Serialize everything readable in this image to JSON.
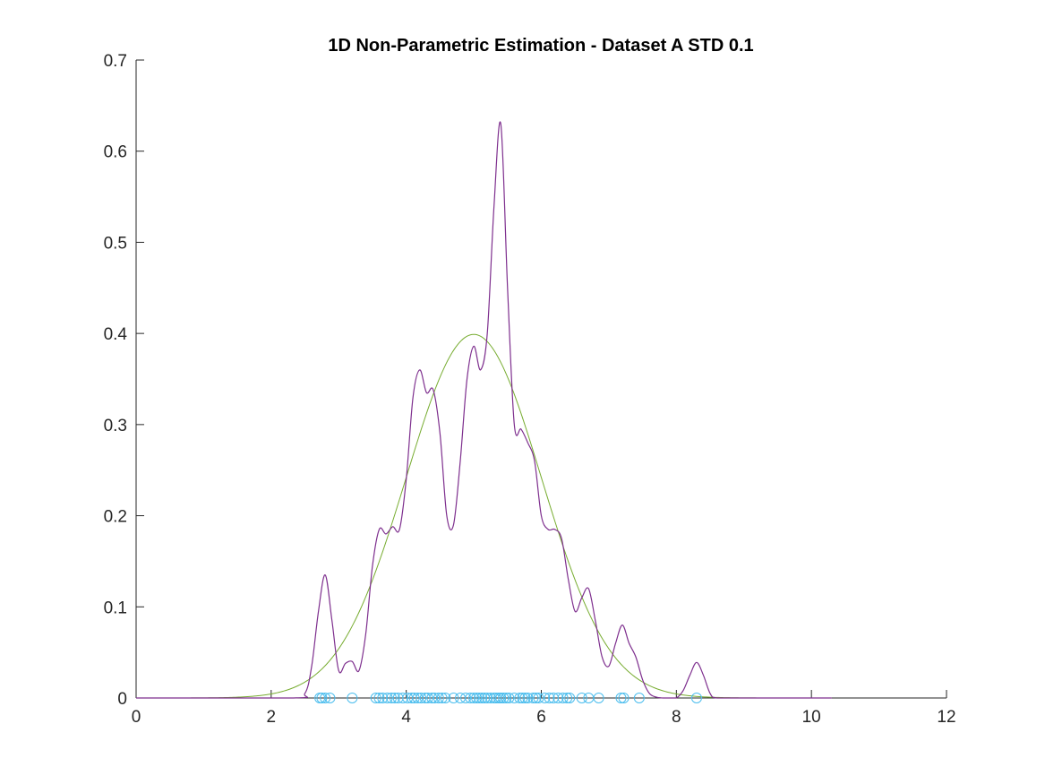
{
  "chart_data": {
    "type": "line",
    "title": "1D Non-Parametric Estimation - Dataset A STD 0.1",
    "xlabel": "",
    "ylabel": "",
    "xlim": [
      0,
      12
    ],
    "ylim": [
      0,
      0.7
    ],
    "xticks": [
      0,
      2,
      4,
      6,
      8,
      10,
      12
    ],
    "yticks": [
      0,
      0.1,
      0.2,
      0.3,
      0.4,
      0.5,
      0.6,
      0.7
    ],
    "xtick_labels": [
      "0",
      "2",
      "4",
      "6",
      "8",
      "10",
      "12"
    ],
    "ytick_labels": [
      "0",
      "0.1",
      "0.2",
      "0.3",
      "0.4",
      "0.5",
      "0.6",
      "0.7"
    ],
    "grid": false,
    "legend": "none",
    "series": [
      {
        "kind": "line",
        "color": "#7e2f8e",
        "x": [
          0,
          2.3,
          2.5,
          2.6,
          2.7,
          2.8,
          2.9,
          3.0,
          3.1,
          3.2,
          3.3,
          3.4,
          3.5,
          3.6,
          3.7,
          3.8,
          3.9,
          4.0,
          4.1,
          4.2,
          4.3,
          4.4,
          4.5,
          4.6,
          4.7,
          4.8,
          4.9,
          5.0,
          5.1,
          5.2,
          5.3,
          5.4,
          5.5,
          5.6,
          5.7,
          5.8,
          5.9,
          6.0,
          6.1,
          6.2,
          6.3,
          6.4,
          6.5,
          6.6,
          6.7,
          6.8,
          6.9,
          7.0,
          7.1,
          7.2,
          7.3,
          7.4,
          7.5,
          7.6,
          7.7,
          7.8,
          7.9,
          8.0,
          8.1,
          8.2,
          8.3,
          8.4,
          8.5,
          8.6,
          9.0,
          10.3
        ],
        "y": [
          0,
          0,
          0.005,
          0.035,
          0.095,
          0.135,
          0.085,
          0.03,
          0.038,
          0.04,
          0.03,
          0.07,
          0.145,
          0.185,
          0.18,
          0.188,
          0.185,
          0.24,
          0.33,
          0.36,
          0.335,
          0.338,
          0.29,
          0.2,
          0.19,
          0.26,
          0.35,
          0.386,
          0.36,
          0.4,
          0.54,
          0.63,
          0.45,
          0.3,
          0.295,
          0.28,
          0.26,
          0.2,
          0.185,
          0.185,
          0.175,
          0.13,
          0.095,
          0.11,
          0.12,
          0.085,
          0.045,
          0.035,
          0.06,
          0.08,
          0.06,
          0.045,
          0.02,
          0.005,
          0.001,
          0,
          0,
          0,
          0.008,
          0.025,
          0.039,
          0.025,
          0.005,
          0,
          0,
          0
        ]
      },
      {
        "kind": "gaussian",
        "color": "#77ac30",
        "mean": 5.0,
        "std": 1.0,
        "x_range": [
          0,
          10.3
        ]
      },
      {
        "kind": "scatter",
        "color": "#4dbeee",
        "marker": "circle-open",
        "x": [
          2.72,
          2.75,
          2.8,
          2.87,
          3.2,
          3.55,
          3.6,
          3.65,
          3.72,
          3.78,
          3.83,
          3.88,
          3.95,
          4.02,
          4.08,
          4.12,
          4.17,
          4.22,
          4.28,
          4.32,
          4.38,
          4.42,
          4.48,
          4.53,
          4.58,
          4.7,
          4.8,
          4.88,
          4.95,
          5.0,
          5.04,
          5.08,
          5.12,
          5.16,
          5.2,
          5.25,
          5.3,
          5.33,
          5.37,
          5.4,
          5.44,
          5.48,
          5.52,
          5.6,
          5.68,
          5.72,
          5.76,
          5.8,
          5.88,
          5.92,
          5.96,
          6.05,
          6.12,
          6.18,
          6.25,
          6.32,
          6.38,
          6.42,
          6.6,
          6.7,
          6.85,
          7.18,
          7.22,
          7.45,
          8.3
        ],
        "y_value": 0
      }
    ]
  }
}
